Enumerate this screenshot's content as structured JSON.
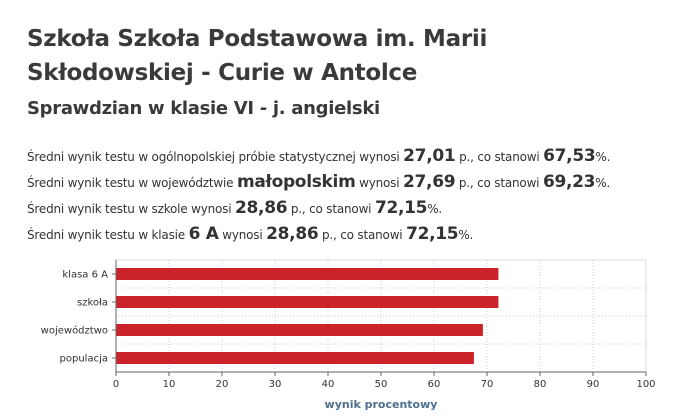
{
  "header": {
    "title": "Szkoła Szkoła Podstawowa im. Marii Skłodowskiej - Curie w Antolce",
    "subtitle": "Sprawdzian w klasie VI - j. angielski"
  },
  "stats": {
    "national": {
      "prefix": "Średni wynik testu w ogólnopolskiej próbie statystycznej wynosi",
      "score": "27,01",
      "unit": "p., co stanowi",
      "percent": "67,53",
      "pct_sign": "%."
    },
    "region": {
      "prefix": "Średni wynik testu w województwie",
      "region_name": "małopolskim",
      "mid": "wynosi",
      "score": "27,69",
      "unit": "p., co stanowi",
      "percent": "69,23",
      "pct_sign": "%."
    },
    "school": {
      "prefix": "Średni wynik testu w szkole wynosi",
      "score": "28,86",
      "unit": "p., co stanowi",
      "percent": "72,15",
      "pct_sign": "%."
    },
    "class": {
      "prefix": "Średni wynik testu w klasie",
      "class_name": "6 A",
      "mid": "wynosi",
      "score": "28,86",
      "unit": "p., co stanowi",
      "percent": "72,15",
      "pct_sign": "%."
    }
  },
  "chart_data": {
    "type": "bar",
    "orientation": "horizontal",
    "categories": [
      "klasa 6 A",
      "szkoła",
      "województwo",
      "populacja"
    ],
    "values": [
      72.15,
      72.15,
      69.23,
      67.53
    ],
    "xlabel": "wynik procentowy",
    "xlim": [
      0,
      100
    ],
    "xticks": [
      "0",
      "10",
      "20",
      "30",
      "40",
      "50",
      "60",
      "70",
      "80",
      "90",
      "100"
    ],
    "grid": true,
    "bar_color": "#cc2229",
    "label_color": "#4f6f8f"
  }
}
